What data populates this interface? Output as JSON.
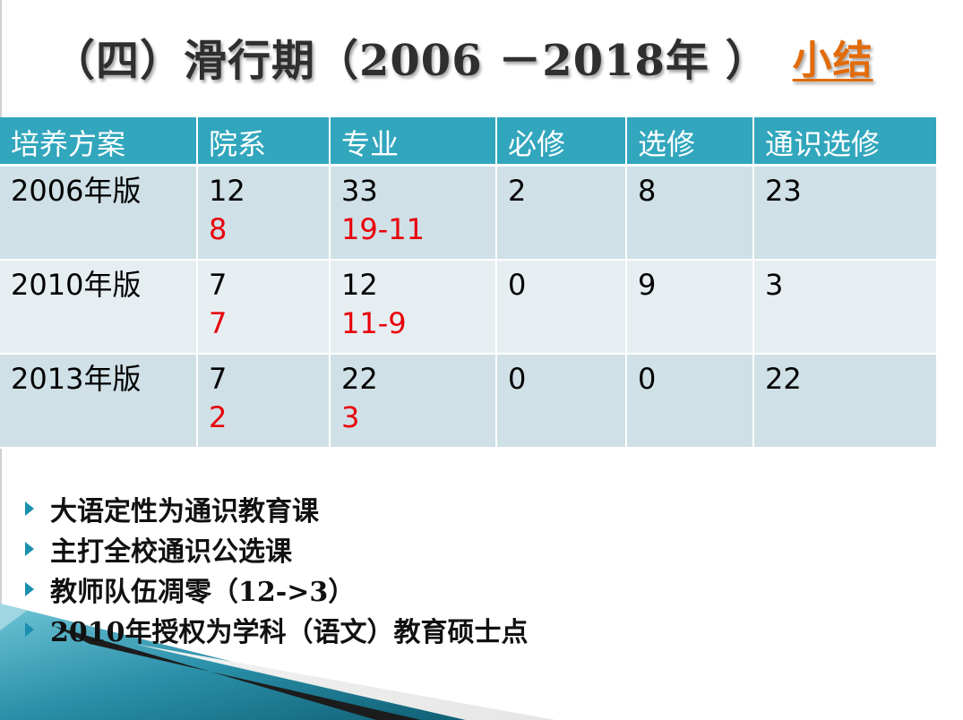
{
  "title": {
    "main": "（四）滑行期（2006 －2018年 ）",
    "summary": "小结"
  },
  "table": {
    "headers": [
      "培养方案",
      "院系",
      "专业",
      "必修",
      "选修",
      "通识选修"
    ],
    "rows": [
      {
        "plan": "2006年版",
        "dept": "12",
        "dept_red": "8",
        "major": "33",
        "major_red": "19-11",
        "required": "2",
        "elective": "8",
        "general": "23"
      },
      {
        "plan": "2010年版",
        "dept": "7",
        "dept_red": "7",
        "major": "12",
        "major_red": "11-9",
        "required": "0",
        "elective": "9",
        "general": "3"
      },
      {
        "plan": "2013年版",
        "dept": "7",
        "dept_red": "2",
        "major": "22",
        "major_red": "3",
        "required": "0",
        "elective": "0",
        "general": "22"
      }
    ]
  },
  "bullets": [
    "大语定性为通识教育课",
    "主打全校通识公选课",
    "教师队伍凋零（12->3）",
    "2010年授权为学科（语文）教育硕士点"
  ],
  "colors": {
    "header_bg": "#31a6bd",
    "row_odd": "#cfe0e6",
    "row_even": "#e7eef1",
    "highlight_red": "#e8000b",
    "summary_orange": "#e26b0a"
  }
}
